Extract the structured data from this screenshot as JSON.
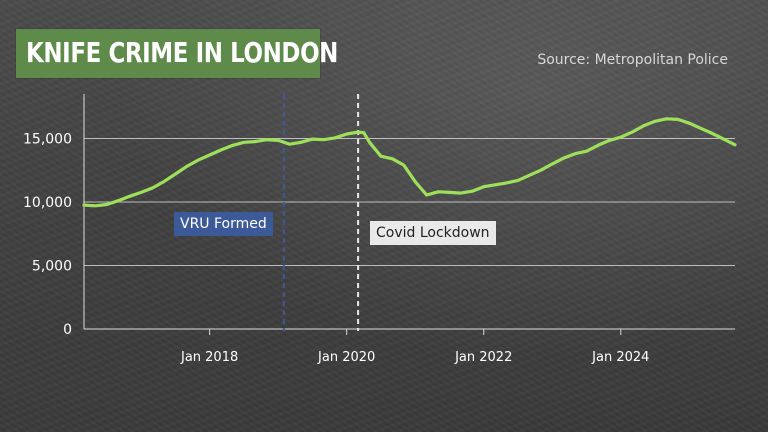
{
  "header": {
    "title": "KNIFE CRIME IN LONDON",
    "source": "Source: Metropolitan Police"
  },
  "colors": {
    "title_bg": "#5e8a4a",
    "line": "#9ee05a",
    "vru_marker": "#3d5a98",
    "covid_marker": "#e9e9e9"
  },
  "chart_data": {
    "type": "line",
    "title": "KNIFE CRIME IN LONDON",
    "xlabel": "",
    "ylabel": "",
    "yticks": [
      0,
      5000,
      10000,
      15000
    ],
    "ytick_labels": [
      "0",
      "5,000",
      "10,000",
      "15,000"
    ],
    "ylim": [
      0,
      18500
    ],
    "xlim": [
      "2016-03",
      "2025-09"
    ],
    "xticks": [
      "2018-01",
      "2020-01",
      "2022-01",
      "2024-01"
    ],
    "xtick_labels": [
      "Jan 2018",
      "Jan 2020",
      "Jan 2022",
      "Jan 2024"
    ],
    "grid": "horizontal",
    "series": [
      {
        "values": [
          {
            "x": "2016-03",
            "y": 9750
          },
          {
            "x": "2016-05",
            "y": 9700
          },
          {
            "x": "2016-07",
            "y": 9800
          },
          {
            "x": "2016-09",
            "y": 10100
          },
          {
            "x": "2016-11",
            "y": 10450
          },
          {
            "x": "2017-01",
            "y": 10750
          },
          {
            "x": "2017-03",
            "y": 11100
          },
          {
            "x": "2017-05",
            "y": 11600
          },
          {
            "x": "2017-07",
            "y": 12200
          },
          {
            "x": "2017-09",
            "y": 12800
          },
          {
            "x": "2017-11",
            "y": 13300
          },
          {
            "x": "2018-01",
            "y": 13700
          },
          {
            "x": "2018-03",
            "y": 14100
          },
          {
            "x": "2018-05",
            "y": 14450
          },
          {
            "x": "2018-07",
            "y": 14700
          },
          {
            "x": "2018-09",
            "y": 14750
          },
          {
            "x": "2018-11",
            "y": 14900
          },
          {
            "x": "2019-01",
            "y": 14850
          },
          {
            "x": "2019-03",
            "y": 14550
          },
          {
            "x": "2019-05",
            "y": 14700
          },
          {
            "x": "2019-07",
            "y": 14950
          },
          {
            "x": "2019-09",
            "y": 14900
          },
          {
            "x": "2019-11",
            "y": 15050
          },
          {
            "x": "2020-01",
            "y": 15350
          },
          {
            "x": "2020-03",
            "y": 15500
          },
          {
            "x": "2020-04",
            "y": 15450
          },
          {
            "x": "2020-05",
            "y": 14700
          },
          {
            "x": "2020-07",
            "y": 13600
          },
          {
            "x": "2020-09",
            "y": 13400
          },
          {
            "x": "2020-11",
            "y": 12900
          },
          {
            "x": "2021-01",
            "y": 11600
          },
          {
            "x": "2021-03",
            "y": 10550
          },
          {
            "x": "2021-05",
            "y": 10800
          },
          {
            "x": "2021-07",
            "y": 10750
          },
          {
            "x": "2021-09",
            "y": 10700
          },
          {
            "x": "2021-11",
            "y": 10850
          },
          {
            "x": "2022-01",
            "y": 11200
          },
          {
            "x": "2022-03",
            "y": 11350
          },
          {
            "x": "2022-05",
            "y": 11500
          },
          {
            "x": "2022-07",
            "y": 11700
          },
          {
            "x": "2022-09",
            "y": 12100
          },
          {
            "x": "2022-11",
            "y": 12500
          },
          {
            "x": "2023-01",
            "y": 13000
          },
          {
            "x": "2023-03",
            "y": 13450
          },
          {
            "x": "2023-05",
            "y": 13800
          },
          {
            "x": "2023-07",
            "y": 14000
          },
          {
            "x": "2023-09",
            "y": 14450
          },
          {
            "x": "2023-11",
            "y": 14850
          },
          {
            "x": "2024-01",
            "y": 15100
          },
          {
            "x": "2024-03",
            "y": 15500
          },
          {
            "x": "2024-05",
            "y": 16000
          },
          {
            "x": "2024-07",
            "y": 16350
          },
          {
            "x": "2024-09",
            "y": 16550
          },
          {
            "x": "2024-11",
            "y": 16500
          },
          {
            "x": "2025-01",
            "y": 16200
          },
          {
            "x": "2025-03",
            "y": 15800
          },
          {
            "x": "2025-05",
            "y": 15400
          },
          {
            "x": "2025-07",
            "y": 14950
          },
          {
            "x": "2025-09",
            "y": 14500
          }
        ]
      }
    ],
    "annotations": [
      {
        "label": "VRU Formed",
        "x": "2019-02",
        "style": "dashed",
        "color": "#3d5a98"
      },
      {
        "label": "Covid Lockdown",
        "x": "2020-03",
        "style": "dashed",
        "color": "#e9e9e9"
      }
    ]
  }
}
